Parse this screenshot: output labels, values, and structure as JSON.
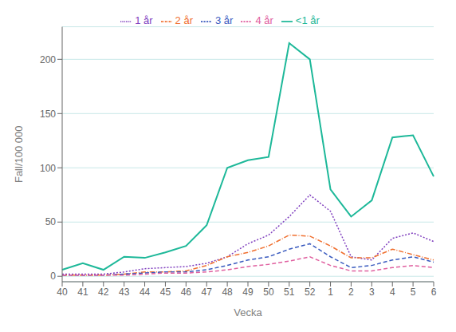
{
  "chart_data": {
    "type": "line",
    "xlabel": "Vecka",
    "ylabel": "Fall/100 000",
    "categories": [
      "40",
      "41",
      "42",
      "43",
      "44",
      "45",
      "46",
      "47",
      "48",
      "49",
      "50",
      "51",
      "52",
      "1",
      "2",
      "3",
      "4",
      "5",
      "6"
    ],
    "series": [
      {
        "name": "<1 år",
        "color": "#1db899",
        "line_style": "solid",
        "values": [
          6,
          12,
          6,
          18,
          17,
          22,
          28,
          47,
          100,
          107,
          110,
          215,
          200,
          80,
          55,
          70,
          128,
          130,
          92
        ]
      },
      {
        "name": "1 år",
        "color": "#8040bf",
        "line_style": "dotted",
        "values": [
          2,
          2,
          2,
          4,
          7,
          8,
          9,
          12,
          18,
          30,
          38,
          55,
          75,
          60,
          18,
          15,
          35,
          40,
          32
        ]
      },
      {
        "name": "2 år",
        "color": "#f07030",
        "line_style": "dashdot",
        "values": [
          1,
          1,
          1,
          2,
          4,
          4,
          5,
          10,
          18,
          22,
          28,
          38,
          37,
          28,
          17,
          17,
          25,
          20,
          15
        ]
      },
      {
        "name": "3 år",
        "color": "#3a5bbf",
        "line_style": "dashed",
        "values": [
          1,
          1,
          1,
          2,
          3,
          4,
          4,
          6,
          10,
          15,
          18,
          25,
          30,
          18,
          8,
          10,
          15,
          18,
          13
        ]
      },
      {
        "name": "4 år",
        "color": "#e060a0",
        "line_style": "dashed",
        "values": [
          1,
          1,
          1,
          1,
          2,
          3,
          3,
          4,
          6,
          9,
          11,
          14,
          18,
          10,
          5,
          5,
          8,
          10,
          8
        ]
      }
    ],
    "ylim": [
      -5,
      230
    ],
    "yticks": [
      0,
      50,
      100,
      150,
      200
    ],
    "grid": "y",
    "legend": "top"
  }
}
